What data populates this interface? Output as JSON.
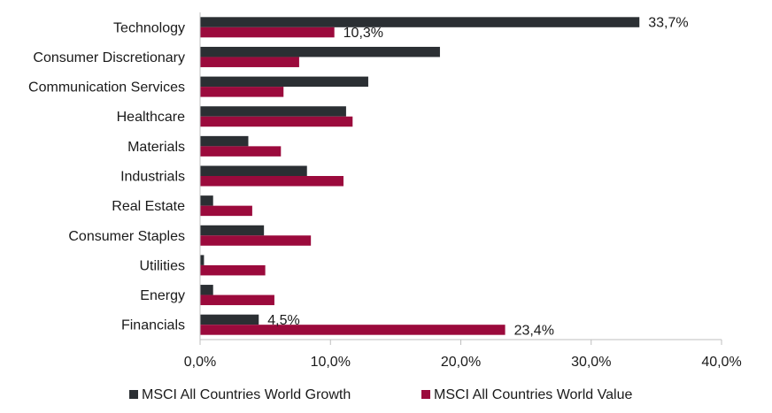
{
  "chart_data": {
    "type": "bar",
    "orientation": "horizontal",
    "categories": [
      "Technology",
      "Consumer Discretionary",
      "Communication Services",
      "Healthcare",
      "Materials",
      "Industrials",
      "Real Estate",
      "Consumer Staples",
      "Utilities",
      "Energy",
      "Financials"
    ],
    "series": [
      {
        "name": "MSCI All Countries World Growth",
        "color": "#2b2f33",
        "values": [
          33.7,
          18.4,
          12.9,
          11.2,
          3.7,
          8.2,
          1.0,
          4.9,
          0.3,
          1.0,
          4.5
        ],
        "labels": [
          "33,7%",
          "",
          "",
          "",
          "",
          "",
          "",
          "",
          "",
          "",
          "4,5%"
        ]
      },
      {
        "name": "MSCI All Countries World Value",
        "color": "#9b0a3c",
        "values": [
          10.3,
          7.6,
          6.4,
          11.7,
          6.2,
          11.0,
          4.0,
          8.5,
          5.0,
          5.7,
          23.4
        ],
        "labels": [
          "10,3%",
          "",
          "",
          "",
          "",
          "",
          "",
          "",
          "",
          "",
          "23,4%"
        ]
      }
    ],
    "xlim": [
      0,
      40
    ],
    "xticks": [
      0,
      10,
      20,
      30,
      40
    ],
    "xtick_labels": [
      "0,0%",
      "10,0%",
      "20,0%",
      "30,0%",
      "40,0%"
    ],
    "title": "",
    "xlabel": "",
    "ylabel": "",
    "grid": false,
    "legend_position": "bottom"
  }
}
